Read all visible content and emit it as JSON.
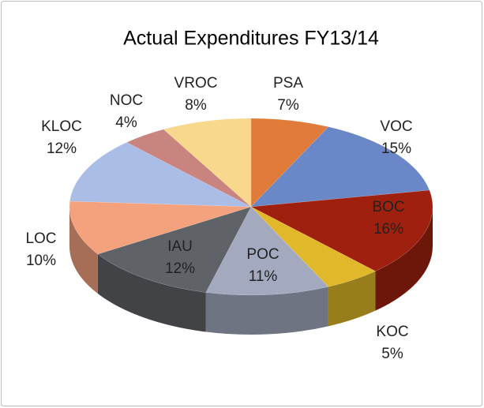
{
  "chart_data": {
    "type": "pie3d",
    "title": "Actual Expenditures FY13/14",
    "categories": [
      "PSA",
      "VOC",
      "BOC",
      "KOC",
      "POC",
      "IAU",
      "LOC",
      "KLOC",
      "NOC",
      "VROC"
    ],
    "values": [
      7,
      15,
      16,
      5,
      11,
      12,
      10,
      12,
      4,
      8
    ],
    "value_labels": [
      "7%",
      "15%",
      "16%",
      "5%",
      "11%",
      "12%",
      "10%",
      "12%",
      "4%",
      "8%"
    ],
    "colors": [
      "#e07b39",
      "#6a88c8",
      "#a0200f",
      "#e0b829",
      "#a3aac0",
      "#5f6368",
      "#f4a27e",
      "#a9bde6",
      "#c98480",
      "#f7d88c"
    ]
  }
}
